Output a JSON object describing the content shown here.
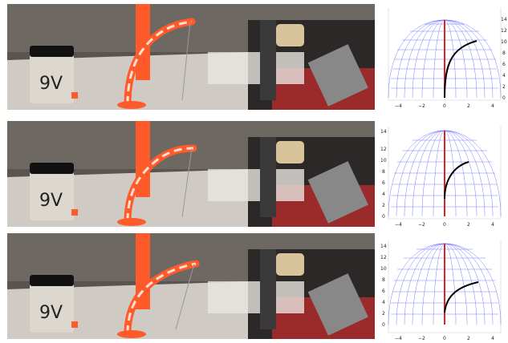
{
  "frames": [
    {
      "photo": {
        "battery_text": "9V",
        "rod_tip_height": 0.82
      },
      "plot": {
        "x_ticks": [
          "−4",
          "−2",
          "0",
          "2",
          "4"
        ],
        "z_ticks": [
          "0",
          "2",
          "4",
          "6",
          "8",
          "10",
          "12",
          "14"
        ],
        "curve": [
          [
            0,
            0
          ],
          [
            0.3,
            4
          ],
          [
            0.9,
            7.5
          ],
          [
            1.9,
            10
          ],
          [
            3.2,
            11.2
          ]
        ],
        "colors": {
          "mesh": "#3333ff",
          "axis": "#d62728",
          "curve": "#000000"
        }
      }
    },
    {
      "photo": {
        "battery_text": "9V",
        "rod_tip_height": 0.72
      },
      "plot": {
        "x_ticks": [
          "−4",
          "−2",
          "0",
          "2",
          "4"
        ],
        "z_ticks": [
          "0",
          "2",
          "4",
          "6",
          "8",
          "10",
          "12",
          "14"
        ],
        "curve": [
          [
            0,
            2.5
          ],
          [
            0.3,
            5
          ],
          [
            0.9,
            7
          ],
          [
            1.6,
            7.8
          ],
          [
            2.2,
            8.2
          ]
        ],
        "colors": {
          "mesh": "#3333ff",
          "axis": "#d62728",
          "curve": "#000000"
        }
      }
    },
    {
      "photo": {
        "battery_text": "9V",
        "rod_tip_height": 0.62
      },
      "plot": {
        "x_ticks": [
          "−4",
          "−2",
          "0",
          "2",
          "4"
        ],
        "z_ticks": [
          "0",
          "2",
          "4",
          "6",
          "8",
          "10",
          "12",
          "14"
        ],
        "curve": [
          [
            0,
            1.5
          ],
          [
            0.4,
            3.8
          ],
          [
            1,
            5.5
          ],
          [
            1.8,
            6.5
          ],
          [
            3.2,
            7.2
          ]
        ],
        "colors": {
          "mesh": "#3333ff",
          "axis": "#d62728",
          "curve": "#000000"
        }
      }
    }
  ]
}
